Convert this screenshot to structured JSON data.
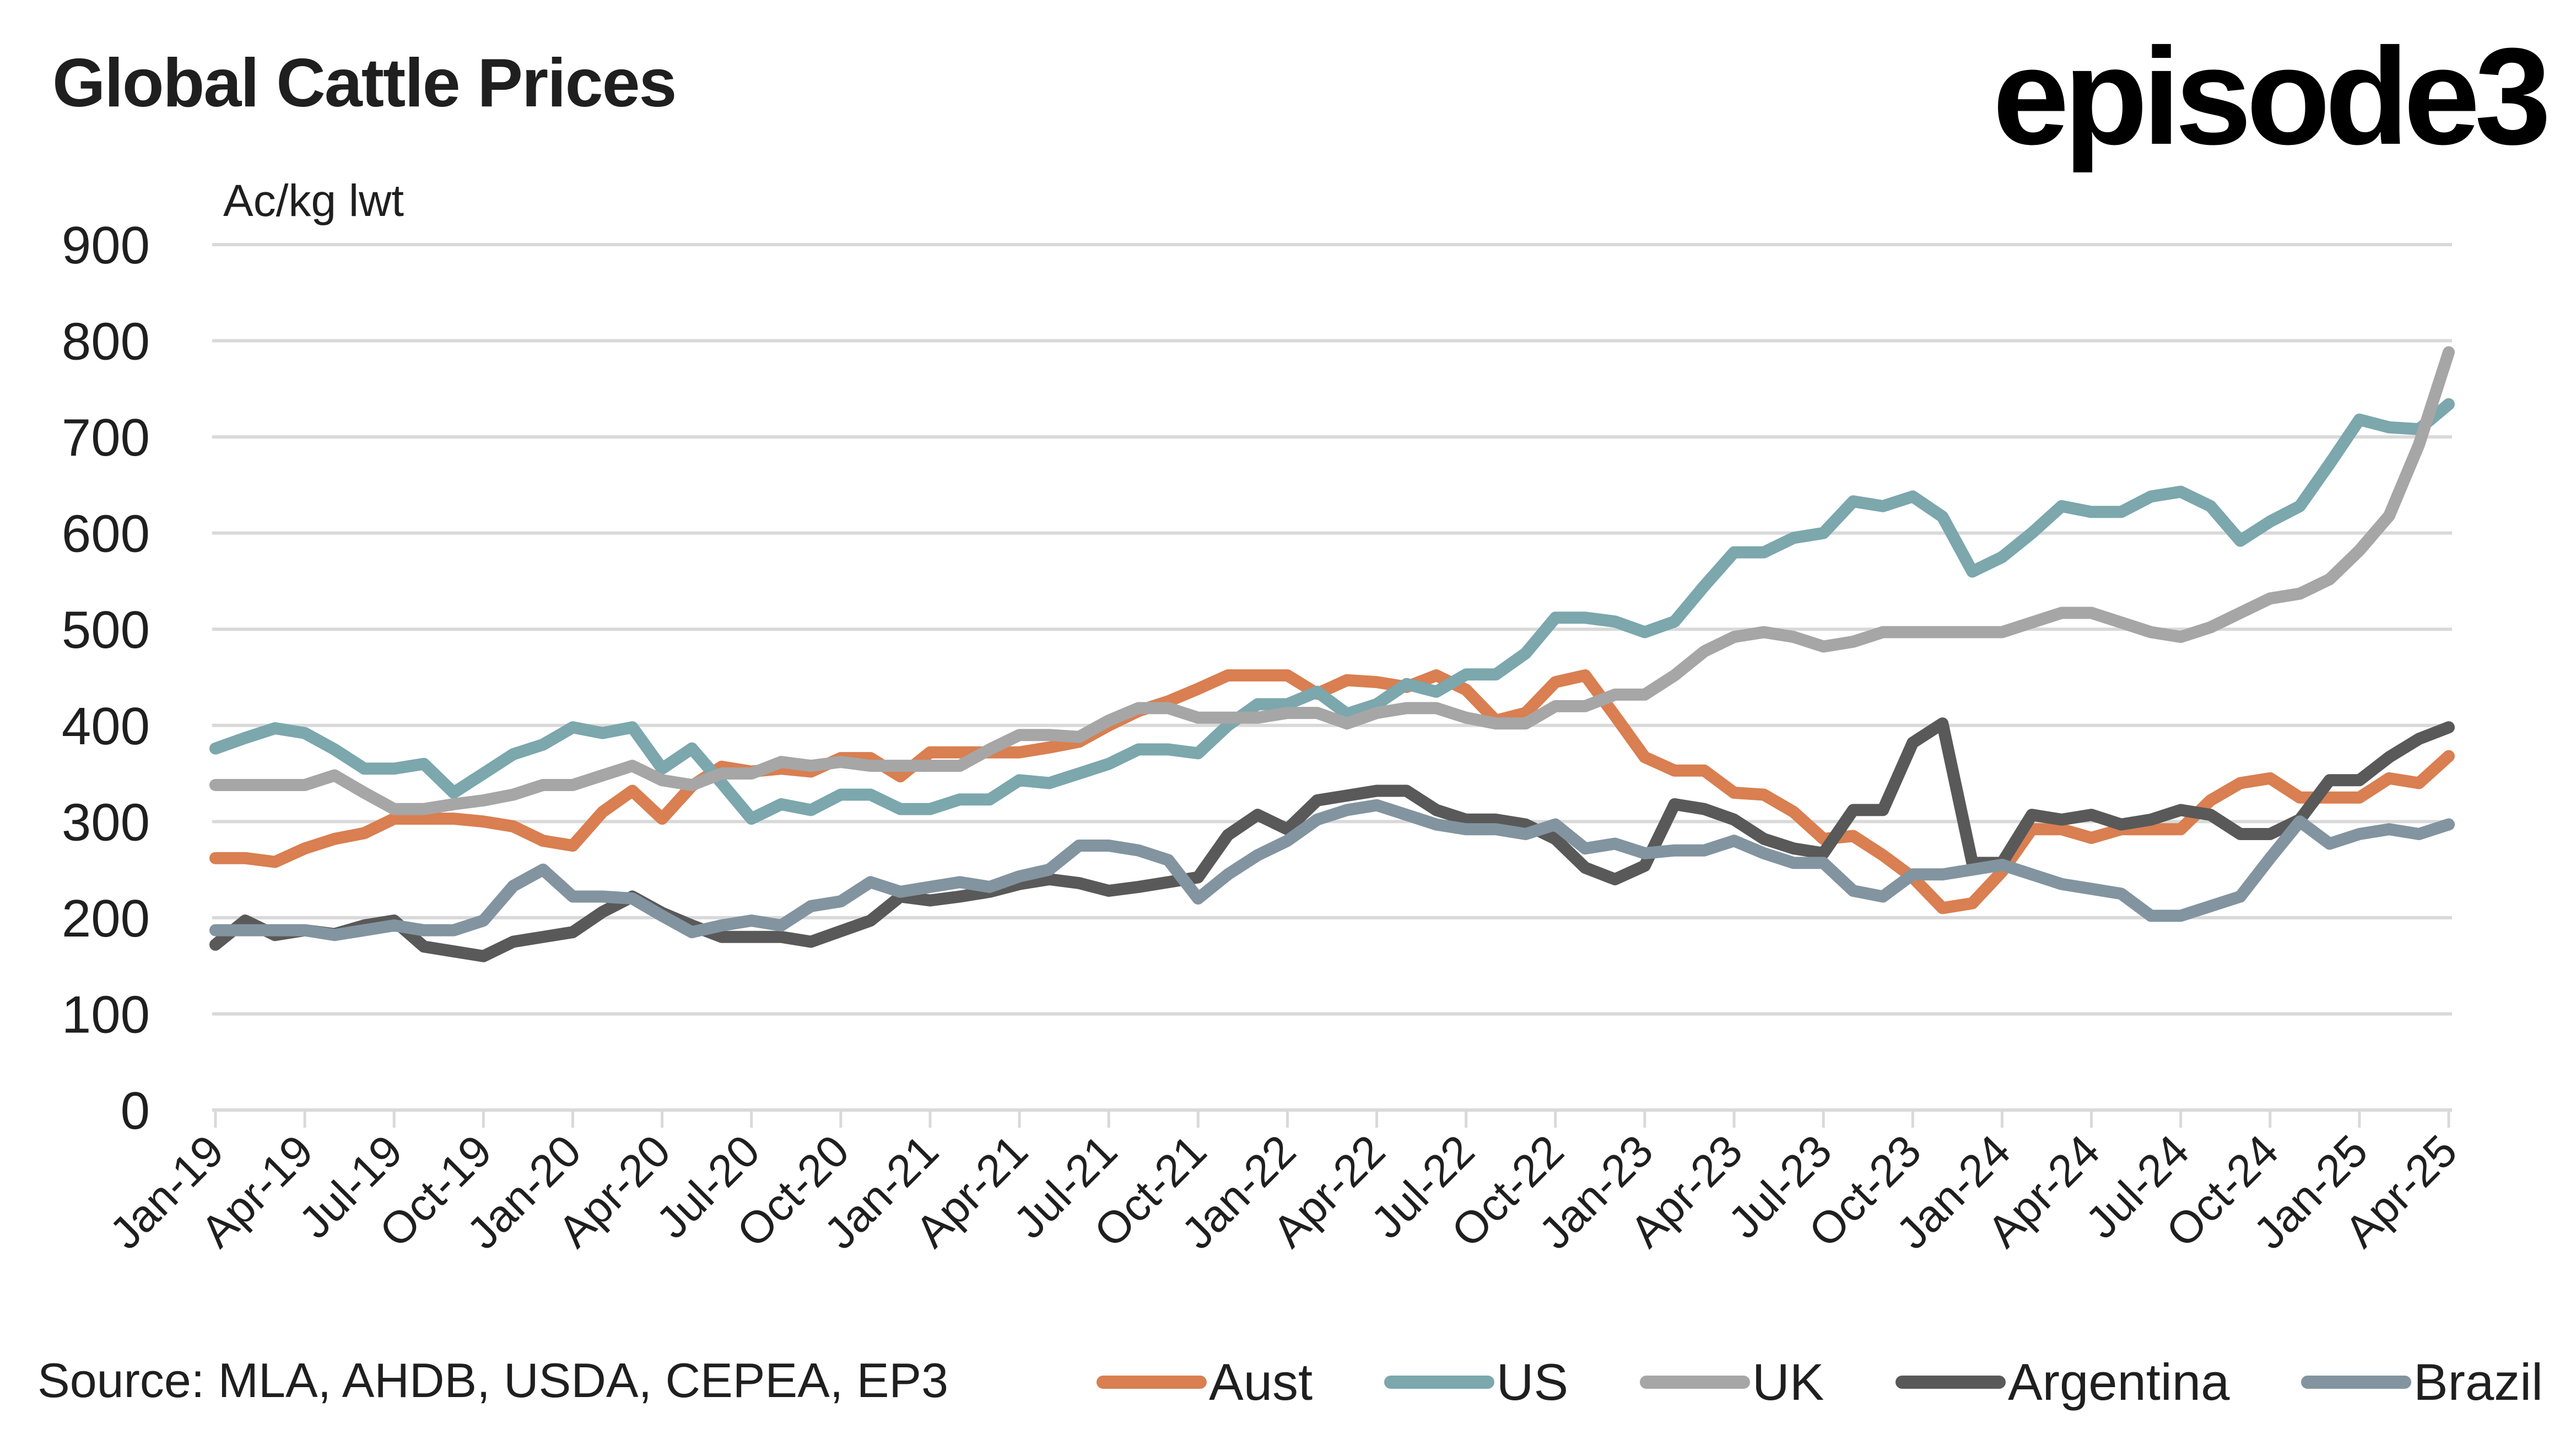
{
  "header": {
    "title": "Global Cattle Prices",
    "logo": "episode3"
  },
  "footer": {
    "source": "Source:  MLA, AHDB, USDA, CEPEA, EP3"
  },
  "chart_data": {
    "type": "line",
    "title": "Global Cattle Prices",
    "ylabel": "Ac/kg lwt",
    "xlabel": "",
    "ylim": [
      0,
      900
    ],
    "yticks": [
      0,
      100,
      200,
      300,
      400,
      500,
      600,
      700,
      800,
      900
    ],
    "grid": true,
    "legend_position": "bottom",
    "x_tick_labels": [
      "Jan-19",
      "Apr-19",
      "Jul-19",
      "Oct-19",
      "Jan-20",
      "Apr-20",
      "Jul-20",
      "Oct-20",
      "Jan-21",
      "Apr-21",
      "Jul-21",
      "Oct-21",
      "Jan-22",
      "Apr-22",
      "Jul-22",
      "Oct-22",
      "Jan-23",
      "Apr-23",
      "Jul-23",
      "Oct-23",
      "Jan-24",
      "Apr-24",
      "Jul-24",
      "Oct-24",
      "Jan-25",
      "Apr-25"
    ],
    "x_start": "Jan-19",
    "x_end": "Apr-25",
    "frequency": "monthly",
    "series": [
      {
        "name": "Aust",
        "color": "#d97f51",
        "values": [
          262,
          262,
          258,
          272,
          282,
          288,
          303,
          303,
          303,
          300,
          295,
          280,
          275,
          310,
          332,
          303,
          337,
          357,
          352,
          355,
          352,
          366,
          366,
          347,
          372,
          372,
          372,
          372,
          377,
          383,
          400,
          415,
          425,
          438,
          452,
          452,
          452,
          433,
          447,
          445,
          440,
          452,
          437,
          405,
          413,
          445,
          452,
          410,
          367,
          353,
          353,
          330,
          328,
          310,
          282,
          285,
          265,
          242,
          210,
          215,
          248,
          292,
          292,
          283,
          292,
          292,
          292,
          322,
          340,
          345,
          325,
          325,
          325,
          345,
          340,
          368
        ]
      },
      {
        "name": "US",
        "color": "#7ba7ad",
        "values": [
          376,
          387,
          397,
          392,
          375,
          355,
          355,
          360,
          330,
          350,
          370,
          380,
          398,
          392,
          398,
          355,
          376,
          340,
          303,
          318,
          312,
          328,
          328,
          313,
          313,
          323,
          323,
          343,
          340,
          350,
          360,
          375,
          375,
          371,
          400,
          422,
          422,
          435,
          412,
          422,
          443,
          435,
          453,
          453,
          475,
          512,
          512,
          508,
          497,
          508,
          545,
          580,
          580,
          595,
          600,
          633,
          628,
          638,
          617,
          560,
          575,
          600,
          628,
          622,
          622,
          638,
          643,
          628,
          592,
          612,
          628,
          672,
          718,
          710,
          708,
          734
        ]
      },
      {
        "name": "UK",
        "color": "#a6a6a6",
        "values": [
          338,
          338,
          338,
          338,
          348,
          330,
          313,
          313,
          318,
          322,
          328,
          338,
          338,
          348,
          358,
          343,
          338,
          350,
          350,
          362,
          358,
          362,
          358,
          358,
          358,
          358,
          375,
          390,
          390,
          388,
          405,
          418,
          418,
          408,
          408,
          408,
          413,
          413,
          402,
          413,
          418,
          418,
          408,
          402,
          402,
          420,
          420,
          432,
          432,
          452,
          477,
          492,
          497,
          492,
          482,
          487,
          497,
          497,
          497,
          497,
          497,
          507,
          517,
          517,
          507,
          497,
          492,
          502,
          517,
          532,
          537,
          552,
          582,
          618,
          692,
          788
        ]
      },
      {
        "name": "Argentina",
        "color": "#595959",
        "values": [
          172,
          197,
          182,
          187,
          183,
          192,
          197,
          170,
          165,
          160,
          175,
          180,
          185,
          206,
          222,
          205,
          192,
          180,
          180,
          180,
          175,
          186,
          197,
          222,
          218,
          222,
          227,
          235,
          240,
          236,
          228,
          232,
          237,
          242,
          286,
          307,
          292,
          322,
          327,
          332,
          332,
          312,
          302,
          302,
          297,
          282,
          252,
          240,
          254,
          318,
          313,
          302,
          282,
          272,
          267,
          312,
          312,
          382,
          402,
          257,
          257,
          307,
          302,
          307,
          297,
          302,
          312,
          307,
          287,
          287,
          302,
          343,
          343,
          367,
          386,
          398
        ]
      },
      {
        "name": "Brazil",
        "color": "#8294a0",
        "values": [
          187,
          187,
          187,
          187,
          182,
          187,
          192,
          187,
          187,
          197,
          233,
          250,
          222,
          222,
          220,
          202,
          185,
          192,
          197,
          192,
          212,
          217,
          237,
          227,
          232,
          237,
          232,
          243,
          250,
          275,
          275,
          270,
          260,
          220,
          245,
          265,
          280,
          302,
          312,
          317,
          307,
          297,
          292,
          292,
          287,
          297,
          272,
          277,
          267,
          270,
          270,
          280,
          267,
          257,
          257,
          228,
          222,
          245,
          245,
          250,
          255,
          245,
          235,
          230,
          225,
          202,
          202,
          212,
          222,
          262,
          300,
          277,
          287,
          292,
          287,
          297
        ]
      }
    ]
  }
}
